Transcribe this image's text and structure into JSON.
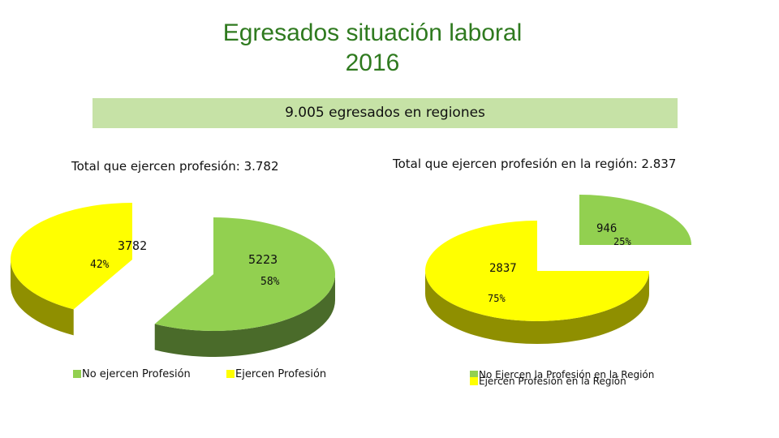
{
  "header": {
    "title_line1": "Egresados situación laboral",
    "title_line2": "2016",
    "banner": "9.005 egresados en regiones"
  },
  "colors": {
    "green": "#92d050",
    "green_side": "#4a6b2a",
    "yellow": "#ffff00",
    "yellow_side": "#8f8f00",
    "banner": "#c6e2a6",
    "title": "#2f7a1f"
  },
  "chart_data": [
    {
      "type": "pie",
      "subtitle": "Total que ejercen profesión: 3.782",
      "slices": [
        {
          "name": "No ejercen Profesión",
          "value": 5223,
          "percent_label": "58%",
          "color": "#92d050"
        },
        {
          "name": "Ejercen Profesión",
          "value": 3782,
          "percent_label": "42%",
          "color": "#ffff00"
        }
      ],
      "legend": [
        "No ejercen Profesión",
        "Ejercen Profesión"
      ],
      "legend_position": "bottom",
      "three_d": true,
      "exploded": true
    },
    {
      "type": "pie",
      "subtitle": "Total que ejercen profesión en la región: 2.837",
      "slices": [
        {
          "name": "No Ejercen la Profesión en la Región",
          "value": 946,
          "percent_label": "25%",
          "color": "#92d050"
        },
        {
          "name": "Ejercen Profesión en la Región",
          "value": 2837,
          "percent_label": "75%",
          "color": "#ffff00"
        }
      ],
      "legend": [
        "No Ejercen la Profesión en la Región",
        "Ejercen Profesión en la Región"
      ],
      "legend_position": "bottom",
      "three_d": true,
      "exploded": true
    }
  ]
}
